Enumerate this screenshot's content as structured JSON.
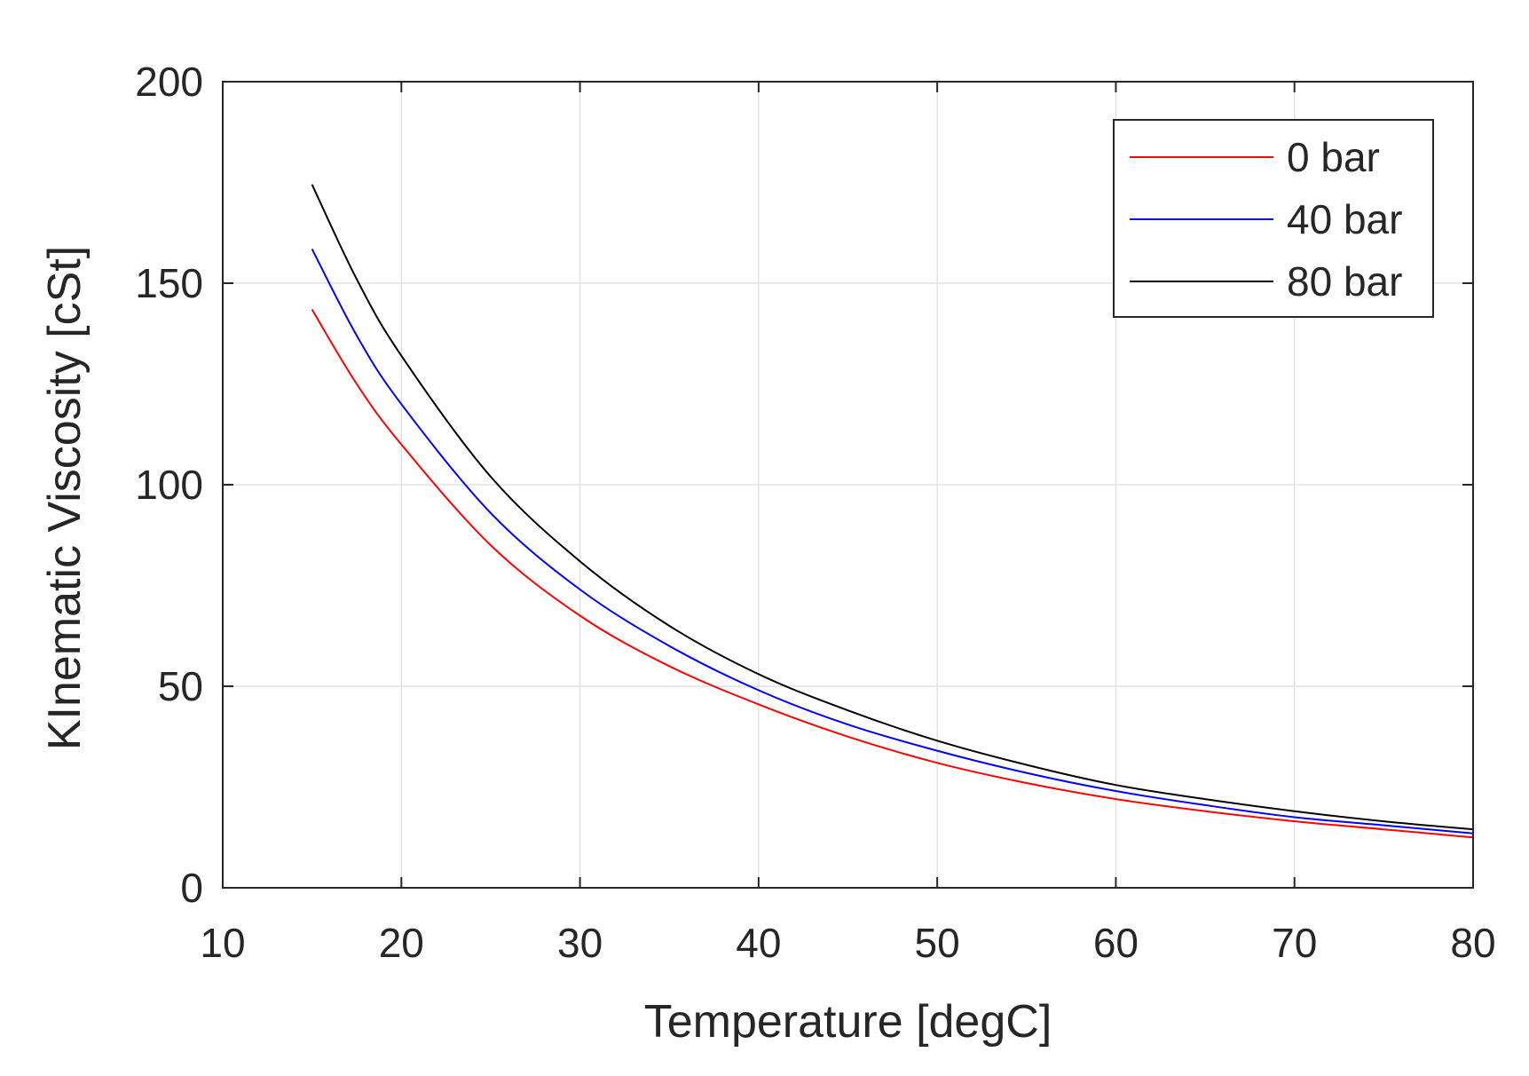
{
  "chart_data": {
    "type": "line",
    "title": "",
    "xlabel": "Temperature [degC]",
    "ylabel": "KInematic Viscosity [cSt]",
    "xlim": [
      10,
      80
    ],
    "ylim": [
      0,
      200
    ],
    "xticks": [
      10,
      20,
      30,
      40,
      50,
      60,
      70,
      80
    ],
    "yticks": [
      0,
      50,
      100,
      150,
      200
    ],
    "grid": true,
    "legend_position": "top-right",
    "x": [
      15,
      17.5,
      20,
      25,
      30,
      35,
      40,
      45,
      50,
      55,
      60,
      65,
      70,
      75,
      80
    ],
    "series": [
      {
        "name": "0 bar",
        "color": "#ff0000",
        "values": [
          143.5,
          125,
          110,
          85,
          67.5,
          55,
          45.5,
          37.5,
          31,
          26,
          22,
          19,
          16.5,
          14.5,
          12.5
        ]
      },
      {
        "name": "40 bar",
        "color": "#0000ff",
        "values": [
          158.5,
          137,
          120,
          93,
          74,
          60,
          49,
          40.5,
          34,
          28.5,
          24,
          20.5,
          17.5,
          15.5,
          13.5
        ]
      },
      {
        "name": "80 bar",
        "color": "#000000",
        "values": [
          174.5,
          151,
          132,
          102,
          81,
          65,
          53,
          44,
          36.5,
          30.5,
          25.5,
          22,
          19,
          16.5,
          14.5
        ]
      }
    ]
  }
}
